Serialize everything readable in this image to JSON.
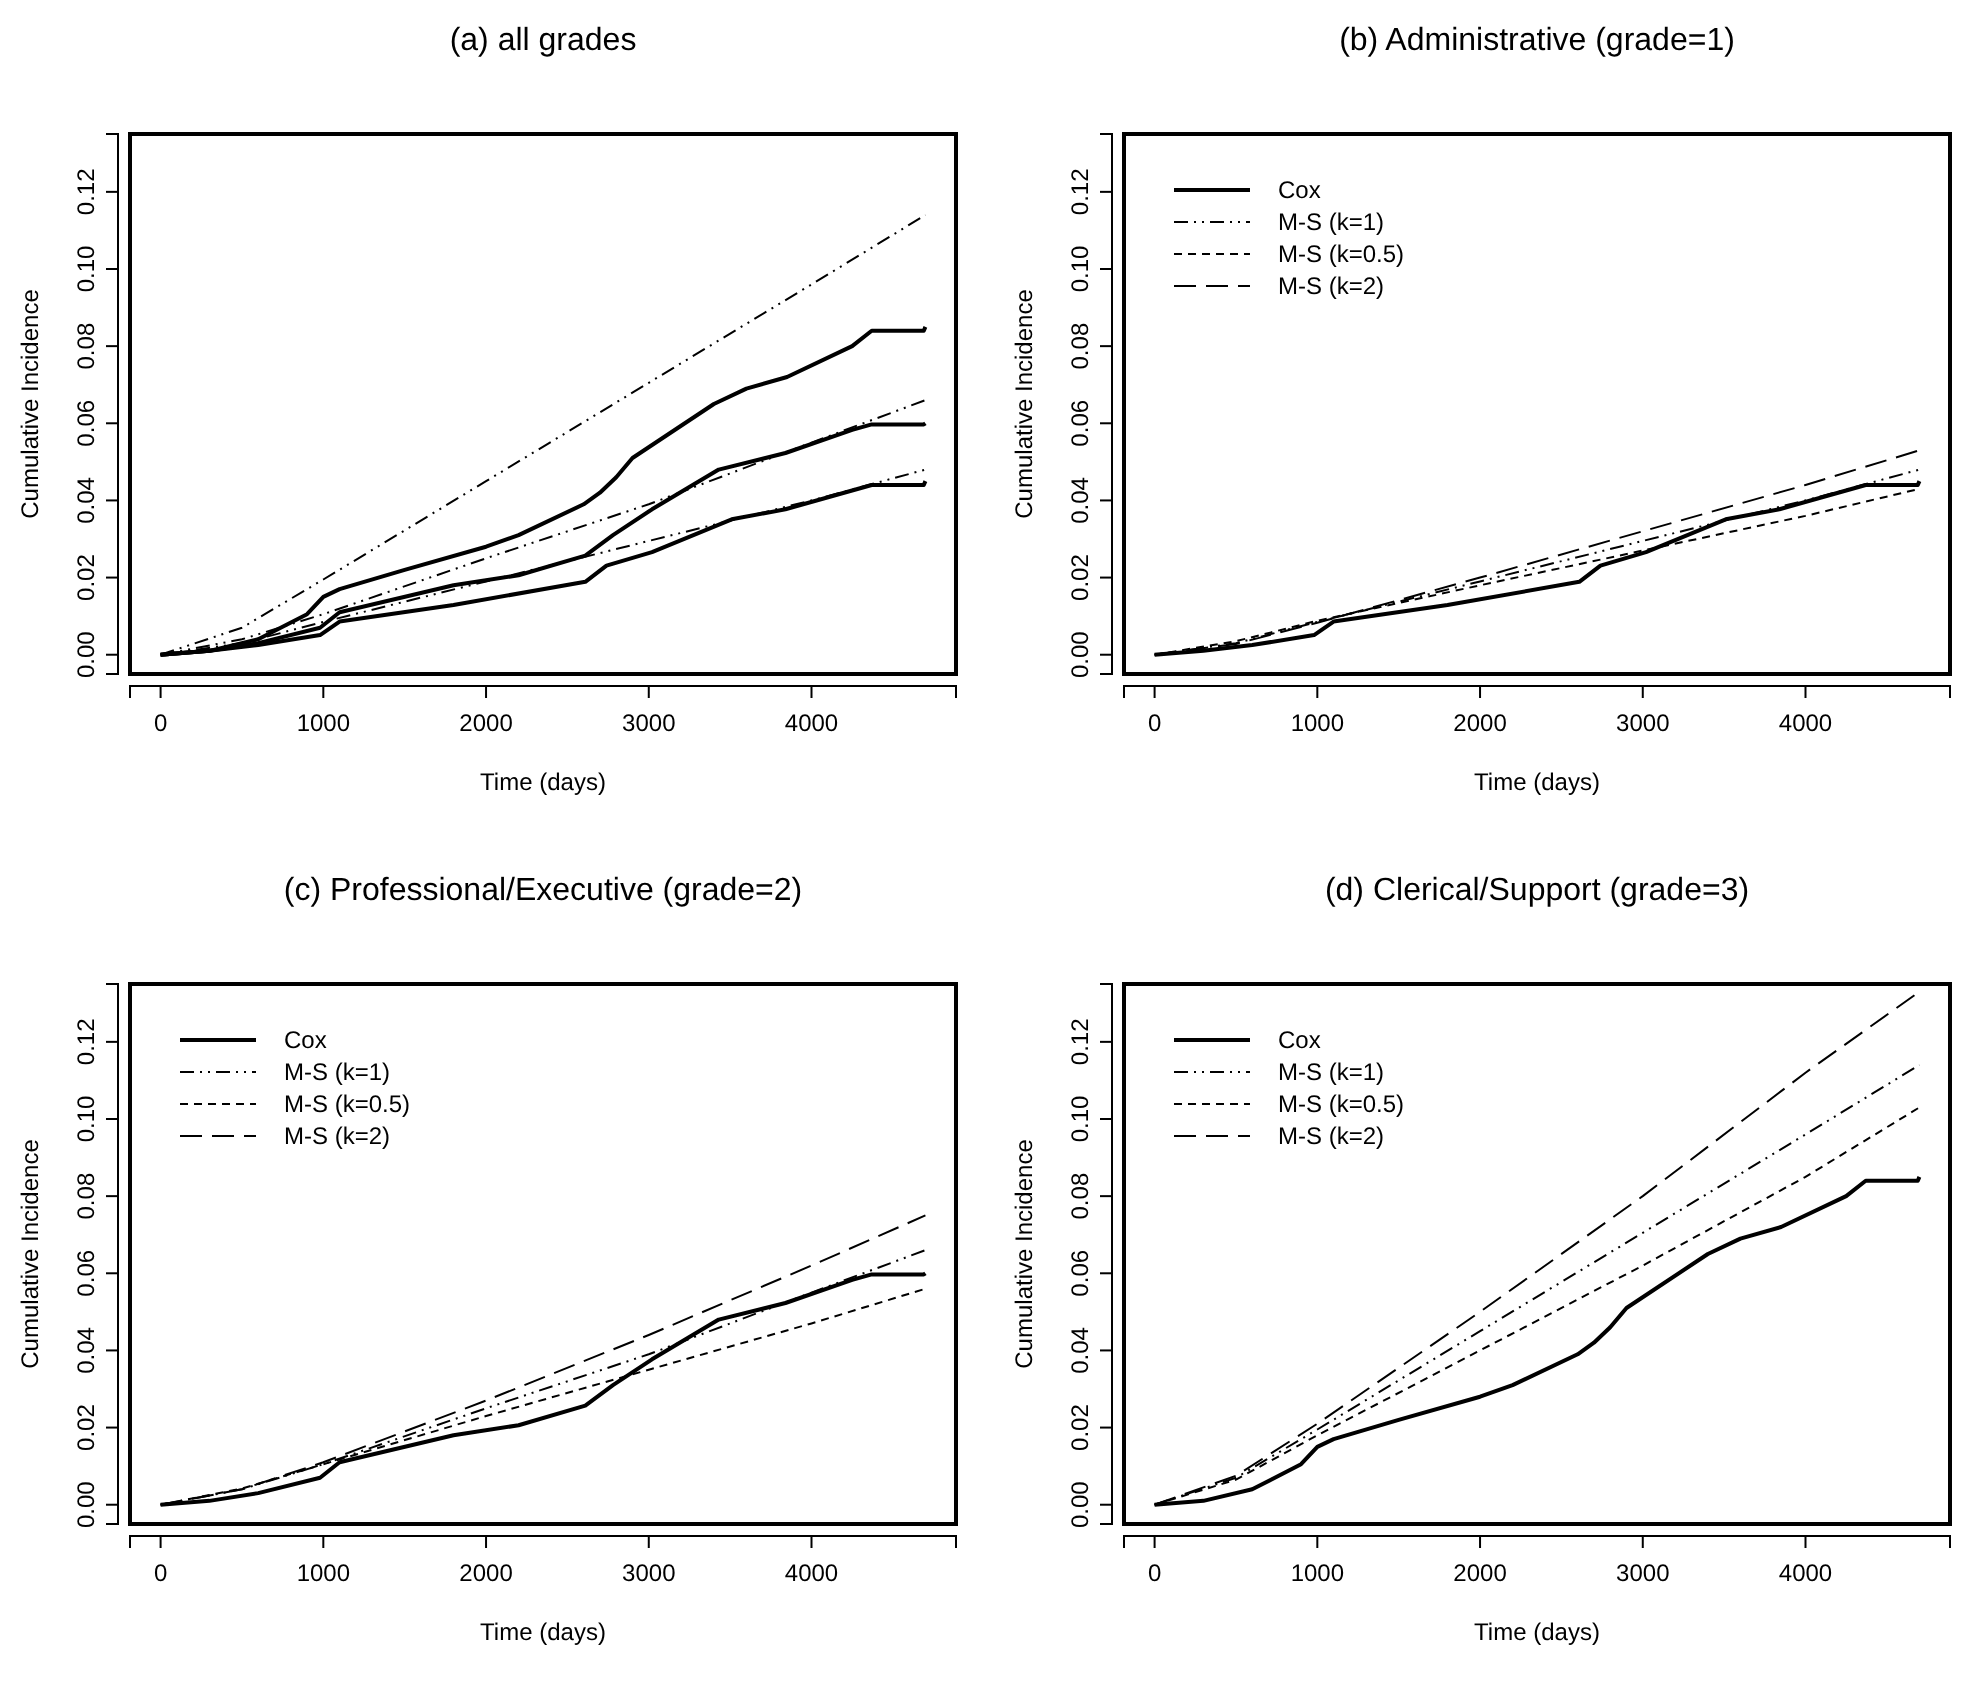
{
  "chart_data": [
    {
      "type": "line",
      "title": "(a) all grades",
      "xlabel": "Time (days)",
      "ylabel": "Cumulative Incidence",
      "xlim": [
        -188,
        4888
      ],
      "ylim": [
        -0.005,
        0.135
      ],
      "xticks": [
        0,
        1000,
        2000,
        3000,
        4000
      ],
      "yticks": [
        {
          "value": 0,
          "label": "0.00"
        },
        {
          "value": 0.02,
          "label": "0.02"
        },
        {
          "value": 0.04,
          "label": "0.04"
        },
        {
          "value": 0.06,
          "label": "0.06"
        },
        {
          "value": 0.08,
          "label": "0.08"
        },
        {
          "value": 0.1,
          "label": "0.10"
        },
        {
          "value": 0.12,
          "label": "0.12"
        }
      ],
      "legend": false,
      "series": [
        {
          "color": "#000000",
          "line_style": "solid",
          "x": [
            0,
            300,
            600,
            900,
            1000,
            1100,
            1500,
            2000,
            2200,
            2600,
            2700,
            2800,
            2900,
            3400,
            3600,
            3850,
            4250,
            4370,
            4690,
            4700
          ],
          "values": [
            0,
            0.001,
            0.004,
            0.0105,
            0.015,
            0.017,
            0.022,
            0.028,
            0.031,
            0.039,
            0.042,
            0.046,
            0.051,
            0.065,
            0.069,
            0.072,
            0.08,
            0.084,
            0.084,
            0.085
          ]
        },
        {
          "color": "#000000",
          "line_style": "dashdot",
          "x": [
            0,
            500,
            1000,
            2000,
            3000,
            4000,
            4700
          ],
          "values": [
            0,
            0.007,
            0.0195,
            0.045,
            0.0705,
            0.096,
            0.114
          ]
        },
        {
          "color": "#000000",
          "line_style": "solid",
          "x": [
            0,
            300,
            600,
            980,
            1100,
            1800,
            2200,
            2610,
            2780,
            3020,
            3430,
            3840,
            4250,
            4370,
            4690,
            4700
          ],
          "values": [
            0,
            0.001,
            0.003,
            0.007,
            0.011,
            0.018,
            0.0206,
            0.0257,
            0.031,
            0.0377,
            0.048,
            0.0523,
            0.0583,
            0.0597,
            0.0597,
            0.06
          ]
        },
        {
          "color": "#000000",
          "line_style": "dashdot",
          "x": [
            0,
            500,
            1000,
            2000,
            3000,
            4000,
            4700
          ],
          "values": [
            0,
            0.004,
            0.0105,
            0.025,
            0.039,
            0.055,
            0.066
          ]
        },
        {
          "color": "#000000",
          "line_style": "solid",
          "x": [
            0,
            300,
            600,
            980,
            1100,
            1800,
            2610,
            2740,
            3020,
            3510,
            3840,
            4370,
            4690,
            4700
          ],
          "values": [
            0,
            0.001,
            0.0025,
            0.0051,
            0.0086,
            0.0129,
            0.0189,
            0.0231,
            0.0266,
            0.0351,
            0.0377,
            0.044,
            0.044,
            0.045
          ]
        },
        {
          "color": "#000000",
          "line_style": "dashdot",
          "x": [
            0,
            500,
            1000,
            2000,
            3000,
            4000,
            4700
          ],
          "values": [
            0,
            0.003,
            0.0085,
            0.019,
            0.0295,
            0.04,
            0.048
          ]
        }
      ]
    },
    {
      "type": "line",
      "title": "(b) Administrative (grade=1)",
      "xlabel": "Time (days)",
      "ylabel": "Cumulative Incidence",
      "xlim": [
        -188,
        4888
      ],
      "ylim": [
        -0.005,
        0.135
      ],
      "xticks": [
        0,
        1000,
        2000,
        3000,
        4000
      ],
      "yticks": [
        {
          "value": 0,
          "label": "0.00"
        },
        {
          "value": 0.02,
          "label": "0.02"
        },
        {
          "value": 0.04,
          "label": "0.04"
        },
        {
          "value": 0.06,
          "label": "0.06"
        },
        {
          "value": 0.08,
          "label": "0.08"
        },
        {
          "value": 0.1,
          "label": "0.10"
        },
        {
          "value": 0.12,
          "label": "0.12"
        }
      ],
      "legend": "top left",
      "series": [
        {
          "name": "Cox",
          "color": "#000000",
          "line_style": "solid",
          "x": [
            0,
            300,
            600,
            980,
            1100,
            1800,
            2610,
            2740,
            3020,
            3510,
            3840,
            4370,
            4690,
            4700
          ],
          "values": [
            0,
            0.001,
            0.0025,
            0.0051,
            0.0086,
            0.0129,
            0.0189,
            0.0231,
            0.0266,
            0.0351,
            0.0377,
            0.044,
            0.044,
            0.045
          ]
        },
        {
          "name": "M-S (k=1)",
          "color": "#000000",
          "line_style": "dashdot",
          "x": [
            0,
            500,
            1000,
            2000,
            3000,
            4000,
            4700
          ],
          "values": [
            0,
            0.003,
            0.0085,
            0.019,
            0.0295,
            0.04,
            0.048
          ]
        },
        {
          "name": "M-S (k=0.5)",
          "color": "#000000",
          "line_style": "dashed",
          "x": [
            0,
            500,
            1000,
            2000,
            3000,
            4000,
            4700
          ],
          "values": [
            0,
            0.0035,
            0.0088,
            0.018,
            0.027,
            0.036,
            0.043
          ]
        },
        {
          "name": "M-S (k=2)",
          "color": "#000000",
          "line_style": "longdash",
          "x": [
            0,
            500,
            1000,
            2000,
            3000,
            4000,
            4700
          ],
          "values": [
            0,
            0.0028,
            0.0083,
            0.02,
            0.032,
            0.044,
            0.053
          ]
        }
      ]
    },
    {
      "type": "line",
      "title": "(c) Professional/Executive (grade=2)",
      "xlabel": "Time (days)",
      "ylabel": "Cumulative Incidence",
      "xlim": [
        -188,
        4888
      ],
      "ylim": [
        -0.005,
        0.135
      ],
      "xticks": [
        0,
        1000,
        2000,
        3000,
        4000
      ],
      "yticks": [
        {
          "value": 0,
          "label": "0.00"
        },
        {
          "value": 0.02,
          "label": "0.02"
        },
        {
          "value": 0.04,
          "label": "0.04"
        },
        {
          "value": 0.06,
          "label": "0.06"
        },
        {
          "value": 0.08,
          "label": "0.08"
        },
        {
          "value": 0.1,
          "label": "0.10"
        },
        {
          "value": 0.12,
          "label": "0.12"
        }
      ],
      "legend": "top left",
      "series": [
        {
          "name": "Cox",
          "color": "#000000",
          "line_style": "solid",
          "x": [
            0,
            300,
            600,
            980,
            1100,
            1800,
            2200,
            2610,
            2780,
            3020,
            3430,
            3840,
            4250,
            4370,
            4690,
            4700
          ],
          "values": [
            0,
            0.001,
            0.003,
            0.007,
            0.011,
            0.018,
            0.0206,
            0.0257,
            0.031,
            0.0377,
            0.048,
            0.0523,
            0.0583,
            0.0597,
            0.0597,
            0.06
          ]
        },
        {
          "name": "M-S (k=1)",
          "color": "#000000",
          "line_style": "dashdot",
          "x": [
            0,
            500,
            1000,
            2000,
            3000,
            4000,
            4700
          ],
          "values": [
            0,
            0.004,
            0.0105,
            0.025,
            0.039,
            0.055,
            0.066
          ]
        },
        {
          "name": "M-S (k=0.5)",
          "color": "#000000",
          "line_style": "dashed",
          "x": [
            0,
            500,
            1000,
            2000,
            3000,
            4000,
            4700
          ],
          "values": [
            0,
            0.0042,
            0.0105,
            0.023,
            0.035,
            0.047,
            0.056
          ]
        },
        {
          "name": "M-S (k=2)",
          "color": "#000000",
          "line_style": "longdash",
          "x": [
            0,
            500,
            1000,
            2000,
            3000,
            4000,
            4700
          ],
          "values": [
            0,
            0.004,
            0.011,
            0.027,
            0.044,
            0.062,
            0.075
          ]
        }
      ]
    },
    {
      "type": "line",
      "title": "(d) Clerical/Support (grade=3)",
      "xlabel": "Time (days)",
      "ylabel": "Cumulative Incidence",
      "xlim": [
        -188,
        4888
      ],
      "ylim": [
        -0.005,
        0.135
      ],
      "xticks": [
        0,
        1000,
        2000,
        3000,
        4000
      ],
      "yticks": [
        {
          "value": 0,
          "label": "0.00"
        },
        {
          "value": 0.02,
          "label": "0.02"
        },
        {
          "value": 0.04,
          "label": "0.04"
        },
        {
          "value": 0.06,
          "label": "0.06"
        },
        {
          "value": 0.08,
          "label": "0.08"
        },
        {
          "value": 0.1,
          "label": "0.10"
        },
        {
          "value": 0.12,
          "label": "0.12"
        }
      ],
      "legend": "top left",
      "series": [
        {
          "name": "Cox",
          "color": "#000000",
          "line_style": "solid",
          "x": [
            0,
            300,
            600,
            900,
            1000,
            1100,
            1500,
            2000,
            2200,
            2600,
            2700,
            2800,
            2900,
            3400,
            3600,
            3850,
            4250,
            4370,
            4690,
            4700
          ],
          "values": [
            0,
            0.001,
            0.004,
            0.0105,
            0.015,
            0.017,
            0.022,
            0.028,
            0.031,
            0.039,
            0.042,
            0.046,
            0.051,
            0.065,
            0.069,
            0.072,
            0.08,
            0.084,
            0.084,
            0.085
          ]
        },
        {
          "name": "M-S (k=1)",
          "color": "#000000",
          "line_style": "dashdot",
          "x": [
            0,
            500,
            1000,
            2000,
            3000,
            4000,
            4700
          ],
          "values": [
            0,
            0.007,
            0.0195,
            0.045,
            0.0705,
            0.096,
            0.114
          ]
        },
        {
          "name": "M-S (k=0.5)",
          "color": "#000000",
          "line_style": "dashed",
          "x": [
            0,
            500,
            1000,
            2000,
            3000,
            4000,
            4700
          ],
          "values": [
            0,
            0.0065,
            0.018,
            0.04,
            0.062,
            0.085,
            0.103
          ]
        },
        {
          "name": "M-S (k=2)",
          "color": "#000000",
          "line_style": "longdash",
          "x": [
            0,
            500,
            1000,
            2000,
            3000,
            4000,
            4700
          ],
          "values": [
            0,
            0.0075,
            0.021,
            0.05,
            0.08,
            0.112,
            0.133
          ]
        }
      ]
    }
  ]
}
